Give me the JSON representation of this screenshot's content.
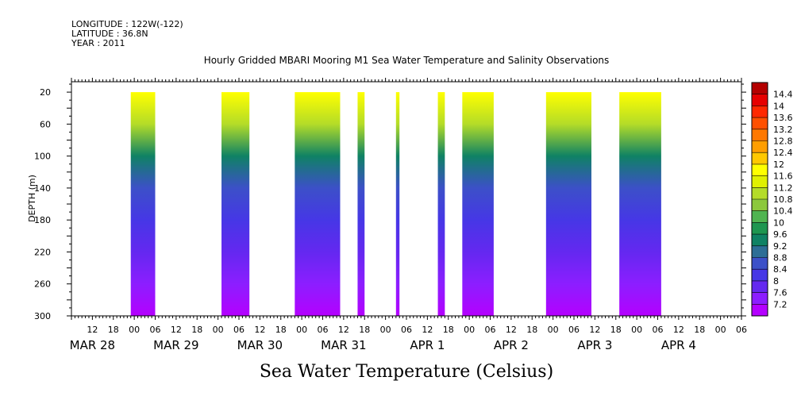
{
  "header": {
    "longitude": "LONGITUDE : 122W(-122)",
    "latitude": "LATITUDE : 36.8N",
    "year": "YEAR : 2011"
  },
  "chart_data": {
    "type": "heatmap",
    "title": "Hourly Gridded MBARI Mooring M1 Sea Water Temperature and Salinity Observations",
    "ylabel": "DEPTH (m)",
    "xlabel": "Sea Water Temperature (Celsius)",
    "x_hours": [
      -18,
      174
    ],
    "ylim": [
      300,
      7
    ],
    "y_ticks": [
      20,
      60,
      100,
      140,
      180,
      220,
      260,
      300
    ],
    "x_hour_tick_labels": [
      "12",
      "18",
      "00",
      "06",
      "12",
      "18",
      "00",
      "06",
      "12",
      "18",
      "00",
      "06",
      "12",
      "18",
      "00",
      "06",
      "12",
      "18",
      "00",
      "06",
      "12",
      "18",
      "00",
      "06",
      "12",
      "18",
      "00",
      "06",
      "12",
      "18",
      "00",
      "06"
    ],
    "x_date_labels": [
      {
        "label": "MAR 28",
        "hour": -12
      },
      {
        "label": "MAR 29",
        "hour": 12
      },
      {
        "label": "MAR 30",
        "hour": 36
      },
      {
        "label": "MAR 31",
        "hour": 60
      },
      {
        "label": "APR  1",
        "hour": 84
      },
      {
        "label": "APR  2",
        "hour": 108
      },
      {
        "label": "APR  3",
        "hour": 132
      },
      {
        "label": "APR  4",
        "hour": 156
      }
    ],
    "data_segments": [
      {
        "start": -1,
        "end": 6
      },
      {
        "start": 25,
        "end": 33
      },
      {
        "start": 46,
        "end": 59
      },
      {
        "start": 64,
        "end": 66
      },
      {
        "start": 75,
        "end": 76
      },
      {
        "start": 87,
        "end": 89
      },
      {
        "start": 94,
        "end": 103
      },
      {
        "start": 118,
        "end": 131
      },
      {
        "start": 139,
        "end": 151
      }
    ],
    "temperature_profile": [
      {
        "depth": 20,
        "temp": 11.8
      },
      {
        "depth": 60,
        "temp": 10.8
      },
      {
        "depth": 100,
        "temp": 9.6
      },
      {
        "depth": 140,
        "temp": 8.9
      },
      {
        "depth": 180,
        "temp": 8.5
      },
      {
        "depth": 220,
        "temp": 8.1
      },
      {
        "depth": 260,
        "temp": 7.7
      },
      {
        "depth": 300,
        "temp": 7.2
      }
    ],
    "colorbar": {
      "levels": [
        "14.4",
        "14",
        "13.6",
        "13.2",
        "12.8",
        "12.4",
        "12",
        "11.6",
        "11.2",
        "10.8",
        "10.4",
        "10",
        "9.6",
        "9.2",
        "8.8",
        "8.4",
        "8",
        "7.6",
        "7.2"
      ],
      "colors": [
        "#b40000",
        "#e60000",
        "#ff2800",
        "#ff5000",
        "#ff7800",
        "#ff9e00",
        "#ffc800",
        "#ffff00",
        "#e0f000",
        "#b4dc28",
        "#8cc83c",
        "#50b450",
        "#1e9650",
        "#0f8264",
        "#2d6e96",
        "#3c50c8",
        "#4637e6",
        "#6428f0",
        "#8c1eff",
        "#b400ff"
      ],
      "value_range": [
        7.2,
        14.4
      ]
    }
  }
}
